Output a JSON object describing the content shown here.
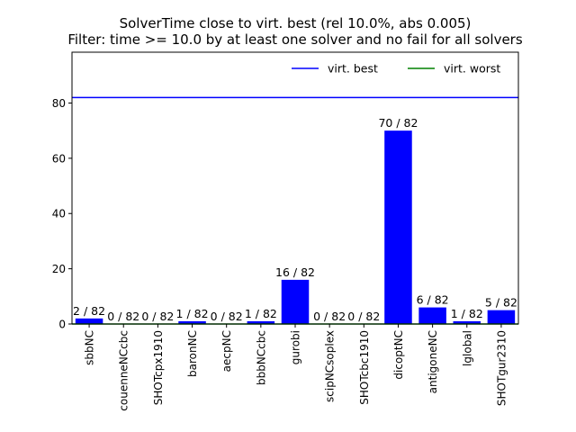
{
  "chart_data": {
    "type": "bar",
    "title": "SolverTime close to virt. best (rel 10.0%, abs 0.005)",
    "subtitle": "Filter: time >= 10.0 by at least one solver and no fail for all solvers",
    "xlabel": "",
    "ylabel": "",
    "categories": [
      "sbbNC",
      "couenneNCcbc",
      "SHOTcpx1910",
      "baronNC",
      "aecpNC",
      "bbbNCcbc",
      "gurobi",
      "scipNCsoplex",
      "SHOTcbc1910",
      "dicoptNC",
      "antigoneNC",
      "lglobal",
      "SHOTgur2310"
    ],
    "values": [
      2,
      0,
      0,
      1,
      0,
      1,
      16,
      0,
      0,
      70,
      6,
      1,
      5
    ],
    "data_labels": [
      "2 / 82",
      "0 / 82",
      "0 / 82",
      "1 / 82",
      "0 / 82",
      "1 / 82",
      "16 / 82",
      "0 / 82",
      "0 / 82",
      "70 / 82",
      "6 / 82",
      "1 / 82",
      "5 / 82"
    ],
    "ylim": [
      0,
      98.4
    ],
    "yticks": [
      0,
      20,
      40,
      60,
      80
    ],
    "reference_lines": [
      {
        "name": "virt. best",
        "value": 82,
        "color": "#0000ff"
      },
      {
        "name": "virt. worst",
        "value": 0,
        "color": "#008000"
      }
    ],
    "bar_color": "#0000ff",
    "grid": false,
    "legend_position": "top-right"
  }
}
